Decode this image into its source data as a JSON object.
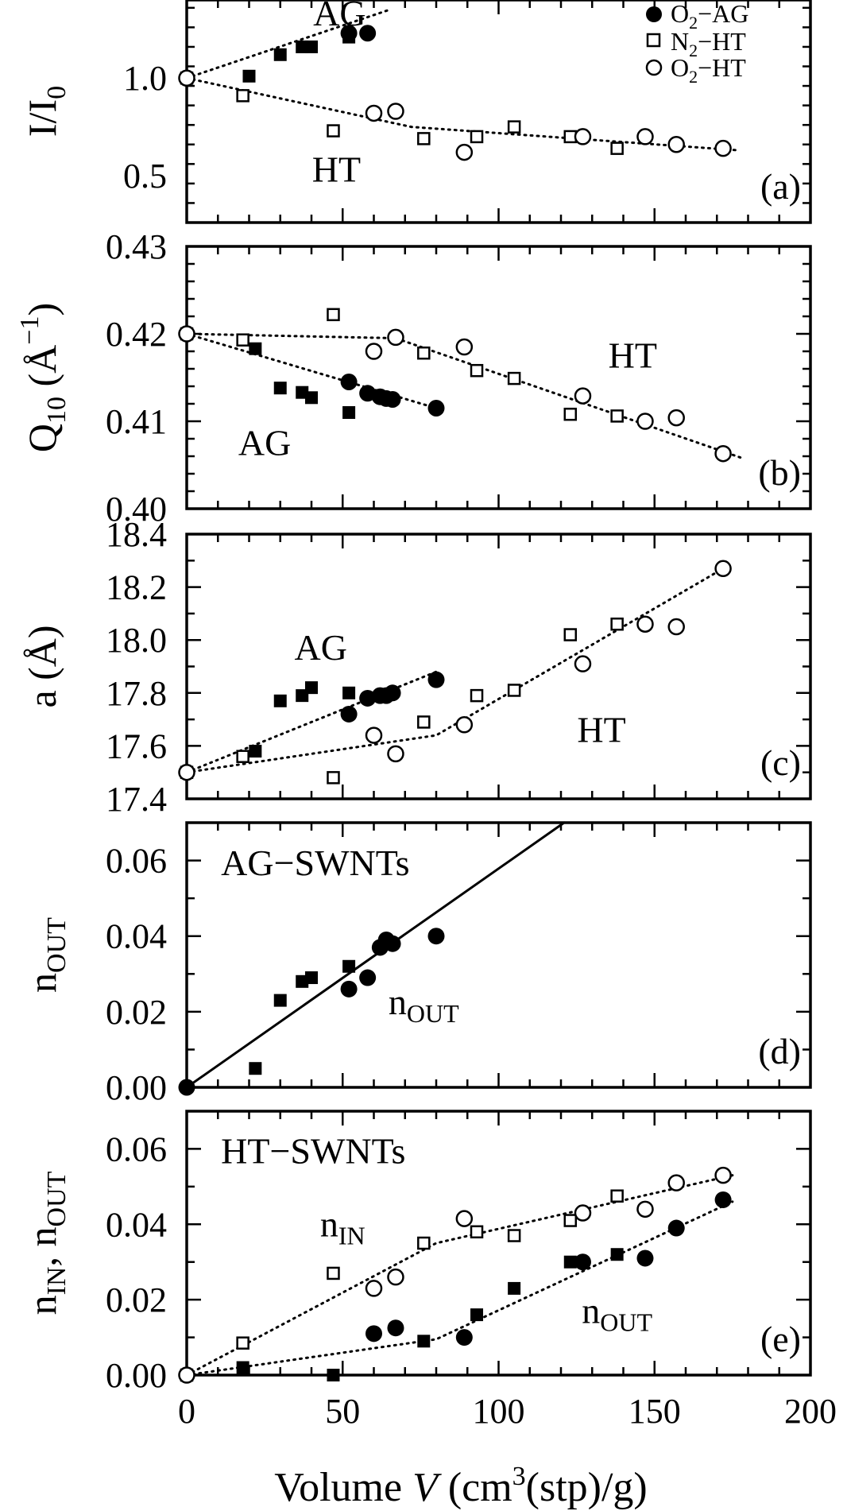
{
  "figure": {
    "x_axis_label_parts": {
      "main": "Volume ",
      "var": "V",
      "open": " (cm",
      "sup": "3",
      "close": "(stp)/g)"
    },
    "x_tick_labels": [
      "0",
      "50",
      "100",
      "150",
      "200"
    ]
  },
  "legend": {
    "entries": [
      {
        "label_main": "O",
        "label_sub": "2",
        "label_rest": "−AG",
        "marker": "filled-circle"
      },
      {
        "label_main": "N",
        "label_sub": "2",
        "label_rest": "−HT",
        "marker": "open-square"
      },
      {
        "label_main": "O",
        "label_sub": "2",
        "label_rest": "−HT",
        "marker": "open-circle"
      }
    ]
  },
  "chart_data": [
    {
      "id": "a",
      "type": "scatter",
      "panel_label": "(a)",
      "ylabel": {
        "main": "I/I",
        "sub": "0"
      },
      "xlim": [
        0,
        200
      ],
      "ylim": [
        0.26,
        1.4
      ],
      "yticks": [
        0.5,
        1.0
      ],
      "ytick_labels": [
        "0.5",
        "1.0"
      ],
      "y_minor_step": 0.1,
      "annotations": [
        {
          "text": "AG",
          "x": 49,
          "y": 1.33
        },
        {
          "text": "HT",
          "x": 48,
          "y": 0.53
        }
      ],
      "series": [
        {
          "marker": "filled-square",
          "points": [
            [
              0,
              1.0
            ],
            [
              20,
              1.01
            ],
            [
              30,
              1.12
            ],
            [
              37,
              1.16
            ],
            [
              40,
              1.16
            ],
            [
              52,
              1.21
            ]
          ]
        },
        {
          "marker": "filled-circle",
          "points": [
            [
              52,
              1.23
            ],
            [
              58,
              1.23
            ]
          ]
        },
        {
          "marker": "open-square",
          "points": [
            [
              0,
              1.0
            ],
            [
              18,
              0.91
            ],
            [
              47,
              0.73
            ],
            [
              76,
              0.69
            ],
            [
              93,
              0.7
            ],
            [
              105,
              0.75
            ],
            [
              123,
              0.7
            ],
            [
              138,
              0.64
            ]
          ]
        },
        {
          "marker": "open-circle",
          "points": [
            [
              0,
              1.0
            ],
            [
              60,
              0.82
            ],
            [
              67,
              0.83
            ],
            [
              89,
              0.62
            ],
            [
              127,
              0.7
            ],
            [
              147,
              0.7
            ],
            [
              157,
              0.66
            ],
            [
              172,
              0.64
            ]
          ]
        }
      ],
      "lines": [
        {
          "style": "dotted",
          "points": [
            [
              0,
              1.0
            ],
            [
              65,
              1.35
            ]
          ]
        },
        {
          "style": "dotted",
          "points": [
            [
              0,
              1.0
            ],
            [
              72,
              0.75
            ],
            [
              177,
              0.63
            ]
          ]
        }
      ]
    },
    {
      "id": "b",
      "type": "scatter",
      "panel_label": "(b)",
      "ylabel": {
        "main": "Q",
        "sub": "10",
        "rest": "  (Å",
        "sup": "−1",
        "close": ")"
      },
      "xlim": [
        0,
        200
      ],
      "ylim": [
        0.4,
        0.43
      ],
      "yticks": [
        0.4,
        0.41,
        0.42,
        0.43
      ],
      "ytick_labels": [
        "0.40",
        "0.41",
        "0.42",
        "0.43"
      ],
      "y_minor_step": 0.002,
      "annotations": [
        {
          "text": "AG",
          "x": 25,
          "y": 0.4075
        },
        {
          "text": "HT",
          "x": 143,
          "y": 0.4175
        }
      ],
      "series": [
        {
          "marker": "filled-square",
          "points": [
            [
              0,
              0.42
            ],
            [
              22,
              0.4183
            ],
            [
              30,
              0.4138
            ],
            [
              37,
              0.4133
            ],
            [
              40,
              0.4127
            ],
            [
              52,
              0.411
            ]
          ]
        },
        {
          "marker": "filled-circle",
          "points": [
            [
              52,
              0.4145
            ],
            [
              58,
              0.4132
            ],
            [
              62,
              0.4128
            ],
            [
              64,
              0.4126
            ],
            [
              66,
              0.4125
            ],
            [
              80,
              0.4115
            ]
          ]
        },
        {
          "marker": "open-square",
          "points": [
            [
              0,
              0.42
            ],
            [
              18,
              0.4193
            ],
            [
              47,
              0.4222
            ],
            [
              76,
              0.4178
            ],
            [
              93,
              0.4158
            ],
            [
              105,
              0.4149
            ],
            [
              123,
              0.4108
            ],
            [
              138,
              0.4106
            ]
          ]
        },
        {
          "marker": "open-circle",
          "points": [
            [
              0,
              0.42
            ],
            [
              60,
              0.418
            ],
            [
              67,
              0.4196
            ],
            [
              89,
              0.4185
            ],
            [
              127,
              0.4129
            ],
            [
              147,
              0.41
            ],
            [
              157,
              0.4104
            ],
            [
              172,
              0.4063
            ]
          ]
        }
      ],
      "lines": [
        {
          "style": "dotted",
          "points": [
            [
              0,
              0.42
            ],
            [
              80,
              0.4115
            ]
          ]
        },
        {
          "style": "dotted",
          "points": [
            [
              0,
              0.42
            ],
            [
              67,
              0.4195
            ],
            [
              178,
              0.4058
            ]
          ]
        }
      ]
    },
    {
      "id": "c",
      "type": "scatter",
      "panel_label": "(c)",
      "ylabel": {
        "main": "a  (Å)"
      },
      "xlim": [
        0,
        200
      ],
      "ylim": [
        17.4,
        18.4
      ],
      "yticks": [
        17.4,
        17.6,
        17.8,
        18.0,
        18.2,
        18.4
      ],
      "ytick_labels": [
        "17.4",
        "17.6",
        "17.8",
        "18.0",
        "18.2",
        "18.4"
      ],
      "y_minor_step": 0.1,
      "annotations": [
        {
          "text": "AG",
          "x": 43,
          "y": 17.97
        },
        {
          "text": "HT",
          "x": 133,
          "y": 17.66
        }
      ],
      "series": [
        {
          "marker": "filled-square",
          "points": [
            [
              0,
              17.5
            ],
            [
              22,
              17.58
            ],
            [
              30,
              17.77
            ],
            [
              37,
              17.79
            ],
            [
              40,
              17.82
            ],
            [
              52,
              17.8
            ]
          ]
        },
        {
          "marker": "filled-circle",
          "points": [
            [
              52,
              17.72
            ],
            [
              58,
              17.78
            ],
            [
              62,
              17.79
            ],
            [
              64,
              17.79
            ],
            [
              66,
              17.8
            ],
            [
              80,
              17.85
            ]
          ]
        },
        {
          "marker": "open-square",
          "points": [
            [
              0,
              17.5
            ],
            [
              18,
              17.56
            ],
            [
              47,
              17.48
            ],
            [
              76,
              17.69
            ],
            [
              93,
              17.79
            ],
            [
              105,
              17.81
            ],
            [
              123,
              18.02
            ],
            [
              138,
              18.06
            ]
          ]
        },
        {
          "marker": "open-circle",
          "points": [
            [
              0,
              17.5
            ],
            [
              60,
              17.64
            ],
            [
              67,
              17.57
            ],
            [
              89,
              17.68
            ],
            [
              127,
              17.91
            ],
            [
              147,
              18.06
            ],
            [
              157,
              18.05
            ],
            [
              172,
              18.27
            ]
          ]
        }
      ],
      "lines": [
        {
          "style": "dotted",
          "points": [
            [
              0,
              17.5
            ],
            [
              80,
              17.88
            ]
          ]
        },
        {
          "style": "dotted",
          "points": [
            [
              0,
              17.5
            ],
            [
              80,
              17.64
            ],
            [
              172,
              18.27
            ]
          ]
        }
      ]
    },
    {
      "id": "d",
      "type": "scatter",
      "panel_label": "(d)",
      "ylabel": {
        "main": "n",
        "sub": "OUT"
      },
      "xlim": [
        0,
        200
      ],
      "ylim": [
        0,
        0.07
      ],
      "yticks": [
        0.0,
        0.02,
        0.04,
        0.06
      ],
      "ytick_labels": [
        "0.00",
        "0.02",
        "0.04",
        "0.06"
      ],
      "y_minor_step": 0.01,
      "annotations": [
        {
          "text": "AG−SWNTs",
          "x": 11,
          "y": 0.0593,
          "anchor": "start"
        },
        {
          "text": "n",
          "sub": "OUT",
          "x": 76,
          "y": 0.0225
        }
      ],
      "series": [
        {
          "marker": "filled-square",
          "points": [
            [
              22,
              0.005
            ],
            [
              30,
              0.023
            ],
            [
              37,
              0.028
            ],
            [
              40,
              0.029
            ],
            [
              52,
              0.032
            ]
          ]
        },
        {
          "marker": "filled-circle",
          "points": [
            [
              0,
              0.0
            ],
            [
              52,
              0.026
            ],
            [
              58,
              0.029
            ],
            [
              62,
              0.037
            ],
            [
              64,
              0.039
            ],
            [
              66,
              0.038
            ],
            [
              80,
              0.04
            ]
          ]
        }
      ],
      "lines": [
        {
          "style": "solid",
          "points": [
            [
              0,
              0.0
            ],
            [
              121,
              0.07
            ]
          ]
        }
      ]
    },
    {
      "id": "e",
      "type": "scatter",
      "panel_label": "(e)",
      "ylabel": {
        "main": "n",
        "sub": "IN",
        "rest": ",  n",
        "sub2": "OUT"
      },
      "xlim": [
        0,
        200
      ],
      "ylim": [
        0,
        0.07
      ],
      "yticks": [
        0.0,
        0.02,
        0.04,
        0.06
      ],
      "ytick_labels": [
        "0.00",
        "0.02",
        "0.04",
        "0.06"
      ],
      "y_minor_step": 0.01,
      "annotations": [
        {
          "text": "HT−SWNTs",
          "x": 11,
          "y": 0.0593,
          "anchor": "start"
        },
        {
          "text": "n",
          "sub": "IN",
          "x": 50,
          "y": 0.04
        },
        {
          "text": "n",
          "sub": "OUT",
          "x": 138,
          "y": 0.017
        }
      ],
      "series": [
        {
          "marker": "filled-square",
          "points": [
            [
              0,
              0.0
            ],
            [
              18,
              0.002
            ],
            [
              47,
              0.0
            ],
            [
              76,
              0.009
            ],
            [
              93,
              0.016
            ],
            [
              105,
              0.023
            ],
            [
              123,
              0.03
            ],
            [
              138,
              0.032
            ]
          ]
        },
        {
          "marker": "filled-circle",
          "points": [
            [
              60,
              0.011
            ],
            [
              67,
              0.0125
            ],
            [
              89,
              0.01
            ],
            [
              127,
              0.03
            ],
            [
              147,
              0.031
            ],
            [
              157,
              0.039
            ],
            [
              172,
              0.0465
            ]
          ]
        },
        {
          "marker": "open-square",
          "points": [
            [
              0,
              0.0
            ],
            [
              18,
              0.0085
            ],
            [
              47,
              0.027
            ],
            [
              76,
              0.035
            ],
            [
              93,
              0.038
            ],
            [
              105,
              0.037
            ],
            [
              123,
              0.041
            ],
            [
              138,
              0.0475
            ]
          ]
        },
        {
          "marker": "open-circle",
          "points": [
            [
              0,
              0.0
            ],
            [
              60,
              0.023
            ],
            [
              67,
              0.026
            ],
            [
              89,
              0.0415
            ],
            [
              127,
              0.043
            ],
            [
              147,
              0.044
            ],
            [
              157,
              0.051
            ],
            [
              172,
              0.053
            ]
          ]
        }
      ],
      "lines": [
        {
          "style": "dotted",
          "points": [
            [
              0,
              0.0
            ],
            [
              80,
              0.035
            ],
            [
              175,
              0.053
            ]
          ]
        },
        {
          "style": "dotted",
          "points": [
            [
              0,
              0.0
            ],
            [
              80,
              0.0095
            ],
            [
              175,
              0.046
            ]
          ]
        }
      ]
    }
  ]
}
